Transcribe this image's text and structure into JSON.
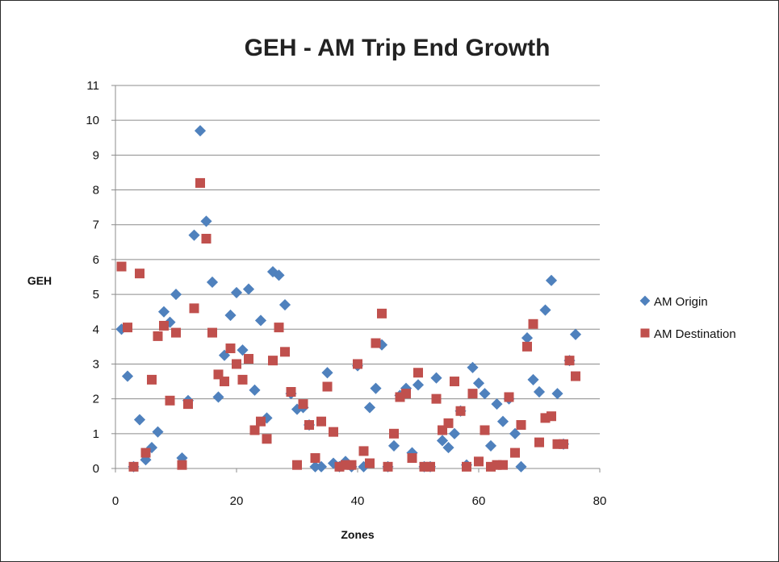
{
  "chart_data": {
    "type": "scatter",
    "title": "GEH - AM Trip End Growth",
    "xlabel": "Zones",
    "ylabel": "GEH",
    "xlim": [
      0,
      80
    ],
    "ylim": [
      0,
      11
    ],
    "xticks": [
      0,
      20,
      40,
      60,
      80
    ],
    "yticks": [
      0,
      1,
      2,
      3,
      4,
      5,
      6,
      7,
      8,
      9,
      10,
      11
    ],
    "grid": "horizontal",
    "legend_position": "right",
    "series": [
      {
        "name": "AM Origin",
        "marker": "diamond",
        "color": "#4f81bd",
        "points": [
          [
            1,
            4.0
          ],
          [
            2,
            2.65
          ],
          [
            3,
            0.05
          ],
          [
            4,
            1.4
          ],
          [
            5,
            0.25
          ],
          [
            6,
            0.6
          ],
          [
            7,
            1.05
          ],
          [
            8,
            4.5
          ],
          [
            9,
            4.2
          ],
          [
            10,
            5.0
          ],
          [
            11,
            0.3
          ],
          [
            12,
            1.95
          ],
          [
            13,
            6.7
          ],
          [
            14,
            9.7
          ],
          [
            15,
            7.1
          ],
          [
            16,
            5.35
          ],
          [
            17,
            2.05
          ],
          [
            18,
            3.25
          ],
          [
            19,
            4.4
          ],
          [
            20,
            5.05
          ],
          [
            21,
            3.4
          ],
          [
            22,
            5.15
          ],
          [
            23,
            2.25
          ],
          [
            24,
            4.25
          ],
          [
            25,
            1.45
          ],
          [
            26,
            5.65
          ],
          [
            27,
            5.55
          ],
          [
            28,
            4.7
          ],
          [
            29,
            2.15
          ],
          [
            30,
            1.7
          ],
          [
            31,
            1.75
          ],
          [
            32,
            1.25
          ],
          [
            33,
            0.05
          ],
          [
            34,
            0.05
          ],
          [
            35,
            2.75
          ],
          [
            36,
            0.15
          ],
          [
            37,
            0.05
          ],
          [
            38,
            0.2
          ],
          [
            39,
            0.05
          ],
          [
            40,
            2.95
          ],
          [
            41,
            0.05
          ],
          [
            42,
            1.75
          ],
          [
            43,
            2.3
          ],
          [
            44,
            3.55
          ],
          [
            45,
            0.05
          ],
          [
            46,
            0.65
          ],
          [
            47,
            2.1
          ],
          [
            48,
            2.3
          ],
          [
            49,
            0.45
          ],
          [
            50,
            2.4
          ],
          [
            51,
            0.05
          ],
          [
            52,
            0.05
          ],
          [
            53,
            2.6
          ],
          [
            54,
            0.8
          ],
          [
            55,
            0.6
          ],
          [
            56,
            1.0
          ],
          [
            57,
            1.65
          ],
          [
            58,
            0.1
          ],
          [
            59,
            2.9
          ],
          [
            60,
            2.45
          ],
          [
            61,
            2.15
          ],
          [
            62,
            0.65
          ],
          [
            63,
            1.85
          ],
          [
            64,
            1.35
          ],
          [
            65,
            2.0
          ],
          [
            66,
            1.0
          ],
          [
            67,
            0.05
          ],
          [
            68,
            3.75
          ],
          [
            69,
            2.55
          ],
          [
            70,
            2.2
          ],
          [
            71,
            4.55
          ],
          [
            72,
            5.4
          ],
          [
            73,
            2.15
          ],
          [
            74,
            0.7
          ],
          [
            75,
            3.1
          ],
          [
            76,
            3.85
          ]
        ]
      },
      {
        "name": "AM Destination",
        "marker": "square",
        "color": "#c0504d",
        "points": [
          [
            1,
            5.8
          ],
          [
            2,
            4.05
          ],
          [
            3,
            0.05
          ],
          [
            4,
            5.6
          ],
          [
            5,
            0.45
          ],
          [
            6,
            2.55
          ],
          [
            7,
            3.8
          ],
          [
            8,
            4.1
          ],
          [
            9,
            1.95
          ],
          [
            10,
            3.9
          ],
          [
            11,
            0.1
          ],
          [
            12,
            1.85
          ],
          [
            13,
            4.6
          ],
          [
            14,
            8.2
          ],
          [
            15,
            6.6
          ],
          [
            16,
            3.9
          ],
          [
            17,
            2.7
          ],
          [
            18,
            2.5
          ],
          [
            19,
            3.45
          ],
          [
            20,
            3.0
          ],
          [
            21,
            2.55
          ],
          [
            22,
            3.15
          ],
          [
            23,
            1.1
          ],
          [
            24,
            1.35
          ],
          [
            25,
            0.85
          ],
          [
            26,
            3.1
          ],
          [
            27,
            4.05
          ],
          [
            28,
            3.35
          ],
          [
            29,
            2.2
          ],
          [
            30,
            0.1
          ],
          [
            31,
            1.85
          ],
          [
            32,
            1.25
          ],
          [
            33,
            0.3
          ],
          [
            34,
            1.35
          ],
          [
            35,
            2.35
          ],
          [
            36,
            1.05
          ],
          [
            37,
            0.05
          ],
          [
            38,
            0.1
          ],
          [
            39,
            0.1
          ],
          [
            40,
            3.0
          ],
          [
            41,
            0.5
          ],
          [
            42,
            0.15
          ],
          [
            43,
            3.6
          ],
          [
            44,
            4.45
          ],
          [
            45,
            0.05
          ],
          [
            46,
            1.0
          ],
          [
            47,
            2.05
          ],
          [
            48,
            2.15
          ],
          [
            49,
            0.3
          ],
          [
            50,
            2.75
          ],
          [
            51,
            0.05
          ],
          [
            52,
            0.05
          ],
          [
            53,
            2.0
          ],
          [
            54,
            1.1
          ],
          [
            55,
            1.3
          ],
          [
            56,
            2.5
          ],
          [
            57,
            1.65
          ],
          [
            58,
            0.05
          ],
          [
            59,
            2.15
          ],
          [
            60,
            0.2
          ],
          [
            61,
            1.1
          ],
          [
            62,
            0.05
          ],
          [
            63,
            0.1
          ],
          [
            64,
            0.1
          ],
          [
            65,
            2.05
          ],
          [
            66,
            0.45
          ],
          [
            67,
            1.25
          ],
          [
            68,
            3.5
          ],
          [
            69,
            4.15
          ],
          [
            70,
            0.75
          ],
          [
            71,
            1.45
          ],
          [
            72,
            1.5
          ],
          [
            73,
            0.7
          ],
          [
            74,
            0.7
          ],
          [
            75,
            3.1
          ],
          [
            76,
            2.65
          ]
        ]
      }
    ]
  }
}
